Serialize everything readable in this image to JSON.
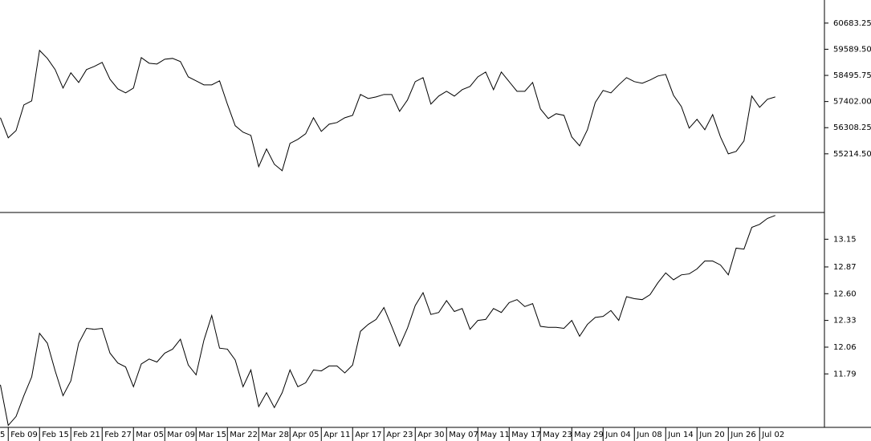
{
  "chart_data": [
    {
      "type": "line",
      "series": [
        {
          "color": "#000000",
          "values": [
            56724,
            55885,
            56187,
            57261,
            57429,
            59542,
            59207,
            58737,
            57965,
            58603,
            58200,
            58737,
            58871,
            59039,
            58334,
            57932,
            57764,
            57965,
            59240,
            59005,
            58972,
            59173,
            59207,
            59073,
            58435,
            58267,
            58100,
            58100,
            58267,
            57294,
            56389,
            56120,
            55986,
            54678,
            55416,
            54778,
            54510,
            55650,
            55818,
            56053,
            56724,
            56154,
            56456,
            56523,
            56724,
            56825,
            57697,
            57529,
            57596,
            57697,
            57697,
            56992,
            57462,
            58234,
            58402,
            57294,
            57630,
            57831,
            57630,
            57898,
            58033,
            58435,
            58636,
            57898,
            58636,
            58234,
            57831,
            57831,
            58200,
            57093,
            56691,
            56892,
            56825,
            55919,
            55550,
            56221,
            57362,
            57865,
            57764,
            58100,
            58402,
            58234,
            58167,
            58301,
            58469,
            58536,
            57663,
            57194,
            56288,
            56657,
            56221,
            56858,
            55919,
            55214,
            55315,
            55751,
            57630,
            57160,
            57496,
            57596
          ]
        }
      ],
      "ylim": [
        52760,
        61650
      ],
      "yticks": [
        60683.25,
        {
          "value": 59589.5,
          "label": "59589.50"
        },
        58495.75,
        {
          "value": 57402,
          "label": "57402.00"
        },
        56308.25,
        {
          "value": 55214.5,
          "label": "55214.50"
        }
      ]
    },
    {
      "type": "line",
      "first_label_fragment": "5",
      "categories": [
        null,
        "Feb 09",
        null,
        null,
        null,
        "Feb 15",
        null,
        null,
        null,
        "Feb 21",
        null,
        null,
        null,
        "Feb 27",
        null,
        null,
        null,
        "Mar 05",
        null,
        null,
        null,
        "Mar 09",
        null,
        null,
        null,
        "Mar 15",
        null,
        null,
        null,
        "Mar 22",
        null,
        null,
        null,
        "Mar 28",
        null,
        null,
        null,
        "Apr 05",
        null,
        null,
        null,
        "Apr 11",
        null,
        null,
        null,
        "Apr 17",
        null,
        null,
        null,
        "Apr 23",
        null,
        null,
        null,
        "Apr 30",
        null,
        null,
        null,
        "May 07",
        null,
        null,
        null,
        "May 11",
        null,
        null,
        null,
        "May 17",
        null,
        null,
        null,
        "May 23",
        null,
        null,
        null,
        "May 29",
        null,
        null,
        null,
        "Jun 04",
        null,
        null,
        null,
        "Jun 08",
        null,
        null,
        null,
        "Jun 14",
        null,
        null,
        null,
        "Jun 20",
        null,
        null,
        null,
        "Jun 26",
        null,
        null,
        null,
        "Jul 02",
        null,
        null
      ],
      "series": [
        {
          "color": "#000000",
          "values": [
            11.68,
            11.27,
            11.36,
            11.57,
            11.76,
            12.2,
            12.1,
            11.82,
            11.57,
            11.72,
            12.1,
            12.25,
            12.24,
            12.25,
            12.0,
            11.9,
            11.86,
            11.66,
            11.89,
            11.94,
            11.91,
            12.0,
            12.04,
            12.14,
            11.88,
            11.78,
            12.13,
            12.38,
            12.05,
            12.04,
            11.93,
            11.66,
            11.83,
            11.46,
            11.6,
            11.45,
            11.6,
            11.83,
            11.66,
            11.7,
            11.83,
            11.82,
            11.87,
            11.87,
            11.8,
            11.88,
            12.22,
            12.29,
            12.34,
            12.46,
            12.27,
            12.07,
            12.25,
            12.48,
            12.61,
            12.39,
            12.41,
            12.53,
            12.42,
            12.45,
            12.24,
            12.33,
            12.34,
            12.45,
            12.41,
            12.51,
            12.54,
            12.47,
            12.5,
            12.27,
            12.26,
            12.26,
            12.25,
            12.33,
            12.17,
            12.29,
            12.36,
            12.37,
            12.43,
            12.33,
            12.57,
            12.55,
            12.54,
            12.59,
            12.71,
            12.81,
            12.74,
            12.79,
            12.8,
            12.85,
            12.93,
            12.93,
            12.89,
            12.79,
            13.06,
            13.05,
            13.27,
            13.3,
            13.36,
            13.39
          ]
        }
      ],
      "ylim": [
        11.25,
        13.42
      ],
      "yticks": [
        13.15,
        12.87,
        {
          "value": 12.6,
          "label": "12.60"
        },
        12.33,
        12.06,
        11.79
      ]
    }
  ]
}
